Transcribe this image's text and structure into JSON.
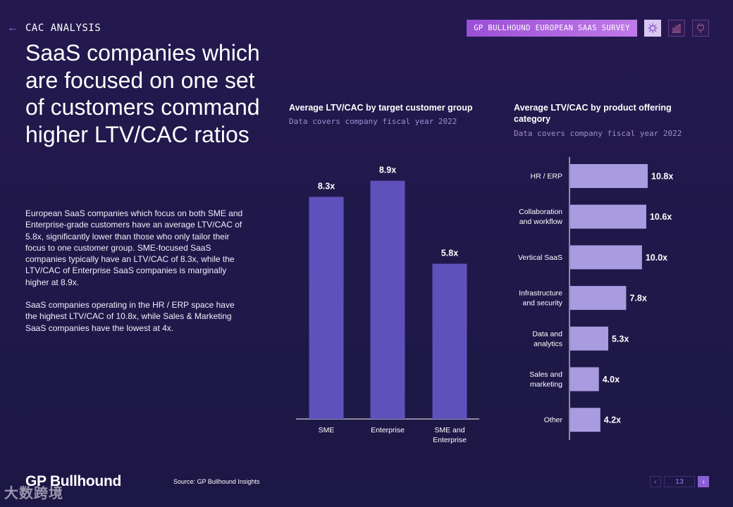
{
  "header": {
    "back_icon": "arrow-left-icon",
    "section": "CAC ANALYSIS",
    "badge": "GP BULLHOUND EUROPEAN SAAS SURVEY",
    "icons": [
      "virus-icon",
      "bar-chart-icon",
      "plug-icon"
    ]
  },
  "title": "SaaS companies which are focused on one set of customers command higher LTV/CAC ratios",
  "body": {
    "p1": "European SaaS companies which focus on both SME and Enterprise-grade customers have an average LTV/CAC of 5.8x, significantly lower than those who only tailor their focus to one customer group. SME-focused SaaS companies typically have an LTV/CAC of 8.3x, while the LTV/CAC of Enterprise SaaS companies is marginally higher at 8.9x.",
    "p2": "SaaS companies operating in the HR / ERP space have the highest LTV/CAC of 10.8x, while Sales & Marketing SaaS companies have the lowest at 4x."
  },
  "chart_data": [
    {
      "type": "bar",
      "orientation": "vertical",
      "title": "Average LTV/CAC by target customer group",
      "subtitle": "Data covers company fiscal year 2022",
      "categories": [
        "SME",
        "Enterprise",
        "SME and Enterprise"
      ],
      "category_lines": [
        [
          "SME"
        ],
        [
          "Enterprise"
        ],
        [
          "SME and",
          "Enterprise"
        ]
      ],
      "values": [
        8.3,
        8.9,
        5.8
      ],
      "value_labels": [
        "8.3x",
        "8.9x",
        "5.8x"
      ],
      "ylim": [
        0,
        10
      ],
      "color": "#5e51bc"
    },
    {
      "type": "bar",
      "orientation": "horizontal",
      "title_lines": [
        "Average LTV/CAC by product offering",
        "category"
      ],
      "subtitle": "Data covers company fiscal year 2022",
      "categories": [
        "HR / ERP",
        "Collaboration and workflow",
        "Vertical SaaS",
        "Infrastructure and security",
        "Data and analytics",
        "Sales and marketing",
        "Other"
      ],
      "category_lines": [
        [
          "HR / ERP"
        ],
        [
          "Collaboration",
          "and workflow"
        ],
        [
          "Vertical SaaS"
        ],
        [
          "Infrastructure",
          "and security"
        ],
        [
          "Data and",
          "analytics"
        ],
        [
          "Sales and",
          "marketing"
        ],
        [
          "Other"
        ]
      ],
      "values": [
        10.8,
        10.6,
        10.0,
        7.8,
        5.3,
        4.0,
        4.2
      ],
      "value_labels": [
        "10.8x",
        "10.6x",
        "10.0x",
        "7.8x",
        "5.3x",
        "4.0x",
        "4.2x"
      ],
      "xlim": [
        0,
        11
      ],
      "color": "#a99be0"
    }
  ],
  "footer": {
    "logo": "GP Bullhound",
    "source": "Source: GP Bullhound Insights",
    "page": "13",
    "prev": "‹",
    "next": "›",
    "watermark": "大数跨境"
  }
}
